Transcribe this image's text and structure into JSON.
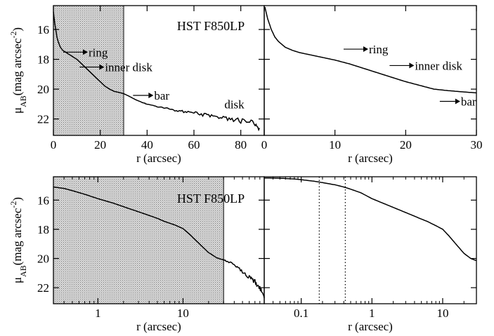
{
  "figure": {
    "label_top": "HST F850LP",
    "label_bottom": "HST F850LP"
  },
  "chart_data": [
    {
      "id": "top-left",
      "type": "line",
      "title": "",
      "annotation": "HST F850LP",
      "xlabel": "r (arcsec)",
      "ylabel": "μ_AB (mag arcsec^-2)",
      "xscale": "linear",
      "xlim": [
        0,
        90
      ],
      "ylim": [
        23.1,
        14.4
      ],
      "y_inverted": true,
      "xticks": [
        0,
        20,
        40,
        60,
        80
      ],
      "yticks": [
        16,
        18,
        20,
        22
      ],
      "shaded_region": [
        0,
        30
      ],
      "series": [
        {
          "x": [
            0,
            0.5,
            1,
            1.5,
            2,
            3,
            4,
            5,
            6,
            8,
            10,
            12,
            14,
            16,
            18,
            20,
            22,
            24,
            26,
            28,
            30,
            32,
            35,
            38,
            40,
            45,
            50,
            55,
            60,
            65,
            70,
            75,
            80,
            85,
            88
          ],
          "y": [
            14.8,
            15.5,
            16.0,
            16.5,
            16.8,
            17.2,
            17.4,
            17.5,
            17.6,
            17.8,
            18.0,
            18.3,
            18.6,
            18.9,
            19.2,
            19.5,
            19.8,
            20.0,
            20.15,
            20.22,
            20.3,
            20.45,
            20.7,
            20.9,
            21.0,
            21.2,
            21.35,
            21.5,
            21.6,
            21.75,
            21.85,
            22.0,
            22.1,
            22.3,
            22.6
          ]
        }
      ],
      "annotations": [
        {
          "text": "ring",
          "x": 15,
          "y": 17.8
        },
        {
          "text": "inner disk",
          "x": 22,
          "y": 18.8
        },
        {
          "text": "bar",
          "x": 43,
          "y": 20.7
        },
        {
          "text": "disk",
          "x": 73,
          "y": 21.3
        }
      ]
    },
    {
      "id": "top-right",
      "type": "line",
      "title": "",
      "xlabel": "r (arcsec)",
      "xscale": "linear",
      "xlim": [
        0,
        30
      ],
      "ylim": [
        23.1,
        14.4
      ],
      "y_inverted": true,
      "xticks": [
        0,
        10,
        20,
        30
      ],
      "series": [
        {
          "x": [
            0.1,
            0.5,
            1,
            1.5,
            2,
            3,
            4,
            5,
            6,
            7,
            8,
            9,
            10,
            12,
            14,
            16,
            18,
            20,
            22,
            24,
            26,
            28,
            30
          ],
          "y": [
            14.5,
            15.3,
            16.0,
            16.5,
            16.8,
            17.2,
            17.4,
            17.55,
            17.65,
            17.75,
            17.85,
            17.95,
            18.05,
            18.3,
            18.6,
            18.9,
            19.2,
            19.5,
            19.75,
            20.0,
            20.1,
            20.18,
            20.25
          ]
        }
      ],
      "annotations": [
        {
          "text": "ring",
          "x": 14.8,
          "y": 17.6
        },
        {
          "text": "inner disk",
          "x": 21.3,
          "y": 18.7
        },
        {
          "text": "bar",
          "x": 27.8,
          "y": 21.1
        }
      ]
    },
    {
      "id": "bottom-left",
      "type": "line",
      "title": "",
      "annotation": "HST F850LP",
      "xlabel": "r (arcsec)",
      "ylabel": "μ_AB (mag arcsec^-2)",
      "xscale": "log",
      "xlim": [
        0.3,
        90
      ],
      "ylim": [
        23.1,
        14.4
      ],
      "y_inverted": true,
      "xticks": [
        1,
        10
      ],
      "yticks": [
        16,
        18,
        20,
        22
      ],
      "shaded_region": [
        0.3,
        30
      ],
      "series": [
        {
          "x": [
            0.3,
            0.4,
            0.5,
            0.7,
            1,
            1.5,
            2,
            3,
            4,
            5,
            6,
            8,
            10,
            12,
            15,
            20,
            25,
            30,
            40,
            50,
            60,
            70,
            80,
            90
          ],
          "y": [
            15.1,
            15.2,
            15.35,
            15.6,
            15.9,
            16.2,
            16.45,
            16.8,
            17.05,
            17.25,
            17.45,
            17.7,
            17.95,
            18.35,
            18.9,
            19.6,
            19.95,
            20.1,
            20.4,
            20.9,
            21.3,
            21.6,
            22.0,
            22.7
          ]
        }
      ]
    },
    {
      "id": "bottom-right",
      "type": "line",
      "title": "",
      "xlabel": "r (arcsec)",
      "xscale": "log",
      "xlim": [
        0.03,
        30
      ],
      "ylim": [
        23.1,
        14.4
      ],
      "y_inverted": true,
      "xticks": [
        0.1,
        1,
        10
      ],
      "vlines": [
        0.18,
        0.42
      ],
      "series": [
        {
          "x": [
            0.03,
            0.05,
            0.08,
            0.1,
            0.15,
            0.2,
            0.3,
            0.4,
            0.5,
            0.7,
            1,
            1.5,
            2,
            3,
            4,
            5,
            6,
            8,
            10,
            12,
            15,
            20,
            25,
            30
          ],
          "y": [
            14.48,
            14.5,
            14.55,
            14.6,
            14.7,
            14.8,
            14.95,
            15.1,
            15.25,
            15.5,
            15.9,
            16.25,
            16.5,
            16.85,
            17.1,
            17.3,
            17.45,
            17.75,
            18.0,
            18.4,
            18.95,
            19.65,
            20.0,
            20.15
          ]
        }
      ]
    }
  ]
}
